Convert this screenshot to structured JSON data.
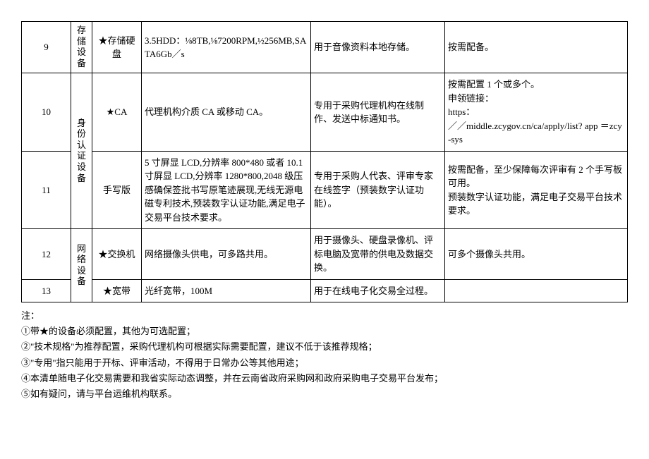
{
  "table": {
    "rows": [
      {
        "num": "9",
        "category": "存储设备",
        "name": "★存储硬盘",
        "spec": "3.5HDD：⅛8TB,⅛7200RPM,½256MB,SATA6Gb／s",
        "use": "用于音像资料本地存储。",
        "other": "按需配备。"
      },
      {
        "num": "10",
        "category": "身份认证设备",
        "name": "★CA",
        "spec": "代理机构介质 CA 或移动 CA。",
        "use": "专用于采购代理机构在线制作、发送中标通知书。",
        "other": "按需配置 1 个或多个。\n申领链接：\nhttps：\n／／middle.zcygov.cn/ca/apply/list? app ＝zcy-sys"
      },
      {
        "num": "11",
        "name": "手写版",
        "spec": "5 寸屏显 LCD,分辨率 800*480 或者 10.1 寸屏显 LCD,分辨率 1280*800,2048 级压感确保签批书写原笔迹展现,无线无源电磁专利技术,预装数字认证功能,满足电子交易平台技术要求。",
        "use": "专用于采购人代表、评审专家在线签字（预装数字认证功能）。",
        "other": "按需配备，至少保障每次评审有 2 个手写板可用。\n预装数字认证功能，满足电子交易平台技术要求。"
      },
      {
        "num": "12",
        "category": "网络设备",
        "name": "★交换机",
        "spec": "网络摄像头供电，可多路共用。",
        "use": "用于摄像头、硬盘录像机、评标电脑及宽带的供电及数据交换。",
        "other": "可多个摄像头共用。"
      },
      {
        "num": "13",
        "name": "★宽带",
        "spec": "光纤宽带，100M",
        "use": "用于在线电子化交易全过程。",
        "other": ""
      }
    ]
  },
  "notes": {
    "header": "注：",
    "items": [
      "①带★的设备必须配置，其他为可选配置；",
      "②\"技术规格\"为推荐配置，采购代理机构可根据实际需要配置，建议不低于该推荐规格；",
      "③\"专用\"指只能用于开标、评审活动，不得用于日常办公等其他用途；",
      "④本清单随电子化交易需要和我省实际动态调整，并在云南省政府采购网和政府采购电子交易平台发布；",
      "⑤如有疑问，请与平台运维机构联系。"
    ]
  }
}
